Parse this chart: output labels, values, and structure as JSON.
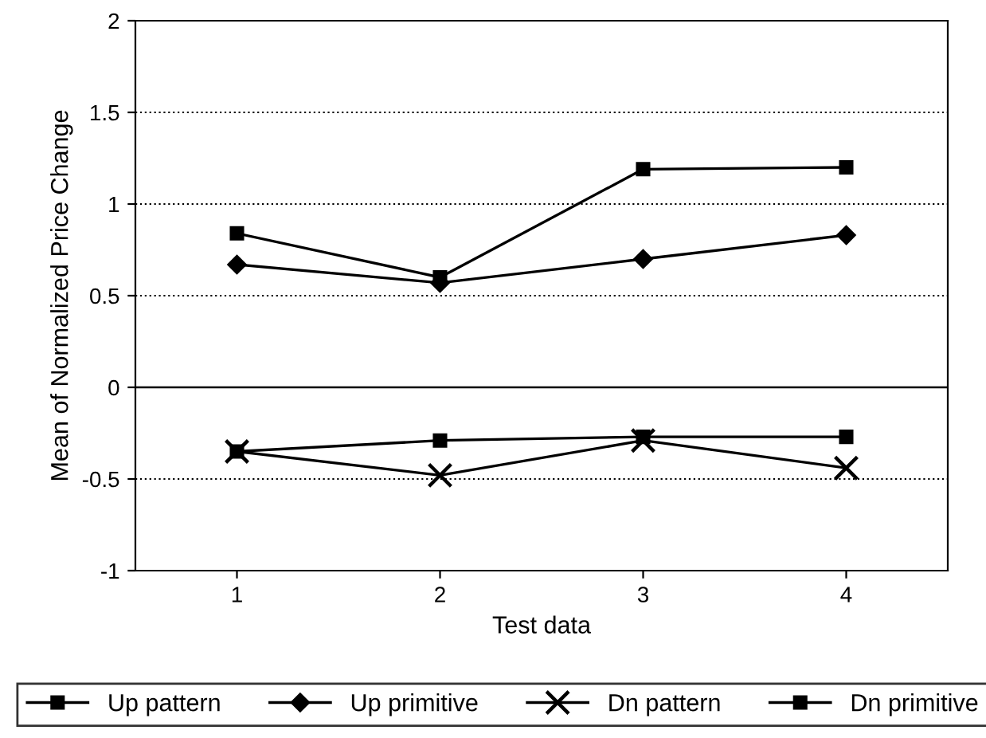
{
  "chart_data": {
    "type": "line",
    "xlabel": "Test data",
    "ylabel": "Mean of Normalized Price Change",
    "categories": [
      "1",
      "2",
      "3",
      "4"
    ],
    "series": [
      {
        "name": "Up pattern",
        "color": "#000000",
        "marker": "square",
        "values": [
          0.84,
          0.6,
          1.19,
          1.2
        ]
      },
      {
        "name": "Up primitive",
        "color": "#000000",
        "marker": "diamond",
        "values": [
          0.67,
          0.57,
          0.7,
          0.83
        ]
      },
      {
        "name": "Dn pattern",
        "color": "#000000",
        "marker": "cross",
        "values": [
          -0.35,
          -0.48,
          -0.29,
          -0.44
        ]
      },
      {
        "name": "Dn primitive",
        "color": "#000000",
        "marker": "square",
        "values": [
          -0.35,
          -0.29,
          -0.27,
          -0.27
        ]
      }
    ],
    "ylim": [
      -1,
      2
    ],
    "yticks": [
      -1,
      -0.5,
      0,
      0.5,
      1,
      1.5,
      2
    ],
    "ref_lines": [
      {
        "axis": "y",
        "value": 0,
        "color": "#000000",
        "line_style": "solid"
      }
    ],
    "grid": "y",
    "legend": "bottom",
    "line_style": "solid"
  }
}
